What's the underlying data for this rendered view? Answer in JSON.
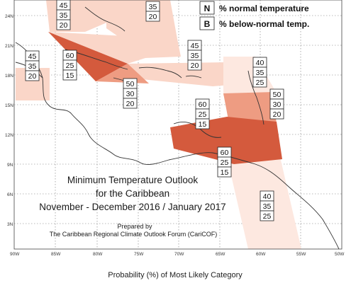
{
  "map": {
    "title_line1": "Minimum Temperature Outlook",
    "title_line2": "for the Caribbean",
    "title_line3": "November - December 2016 / January 2017",
    "prepared_by": "Prepared by",
    "organization": "The Caribbean Regional Climate Outlook Forum (CariCOF)",
    "footer": "Probability (%) of Most Likely Category"
  },
  "legend": [
    {
      "key": "N",
      "text": "% normal temperature"
    },
    {
      "key": "B",
      "text": "% below-normal temp."
    }
  ],
  "axes": {
    "x_ticks": [
      "90W",
      "85W",
      "80W",
      "75W",
      "70W",
      "65W",
      "60W",
      "55W",
      "50W"
    ],
    "y_ticks": [
      "24N",
      "21N",
      "18N",
      "15N",
      "12N",
      "9N",
      "6N",
      "3N"
    ]
  },
  "colors": {
    "light": "#fad6c8",
    "medium": "#ee9c82",
    "dark": "#d45a3d",
    "pale": "#fde8e0"
  },
  "probability_boxes": [
    {
      "id": "top-left",
      "values": [
        "45",
        "35",
        "20"
      ]
    },
    {
      "id": "top-mid",
      "values": [
        "",
        "35",
        "20"
      ]
    },
    {
      "id": "west",
      "values": [
        "45",
        "35",
        "20"
      ]
    },
    {
      "id": "cuba-west",
      "values": [
        "60",
        "25",
        "15"
      ]
    },
    {
      "id": "hispaniola",
      "values": [
        "45",
        "35",
        "20"
      ]
    },
    {
      "id": "jamaica",
      "values": [
        "50",
        "30",
        "20"
      ]
    },
    {
      "id": "lesser-antilles-north",
      "values": [
        "40",
        "35",
        "25"
      ]
    },
    {
      "id": "lesser-antilles-south",
      "values": [
        "50",
        "30",
        "20"
      ]
    },
    {
      "id": "caribbean-sea",
      "values": [
        "60",
        "25",
        "15"
      ]
    },
    {
      "id": "venezuela",
      "values": [
        "60",
        "25",
        "15"
      ]
    },
    {
      "id": "guianas",
      "values": [
        "40",
        "35",
        "25"
      ]
    }
  ]
}
